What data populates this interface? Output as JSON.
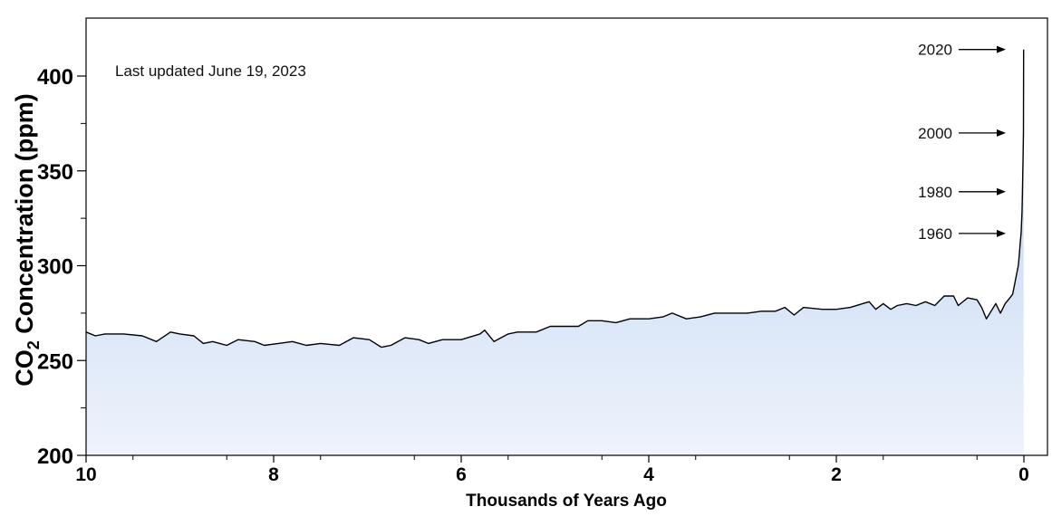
{
  "chart_data": {
    "type": "area",
    "title": "",
    "annotation": "Last updated June 19, 2023",
    "xlabel": "Thousands of Years Ago",
    "ylabel": "CO",
    "ylabel_subscript": "2",
    "ylabel_suffix": " Concentration (ppm)",
    "xlim": [
      10,
      0
    ],
    "ylim": [
      200,
      425
    ],
    "x_ticks": [
      10,
      8,
      6,
      4,
      2,
      0
    ],
    "y_ticks": [
      200,
      250,
      300,
      350,
      400
    ],
    "x_tick_labels": [
      "10",
      "8",
      "6",
      "4",
      "2",
      "0"
    ],
    "y_tick_labels": [
      "200",
      "250",
      "300",
      "350",
      "400"
    ],
    "grid": false,
    "colors": {
      "line": "#000000",
      "fill_top": "#b7cff0",
      "fill_bottom": "#eef3fc"
    },
    "year_markers": [
      {
        "label": "2020",
        "value": 414
      },
      {
        "label": "2000",
        "value": 370
      },
      {
        "label": "1980",
        "value": 339
      },
      {
        "label": "1960",
        "value": 317
      }
    ],
    "series": [
      {
        "x": [
          10,
          9.9,
          9.8,
          9.6,
          9.4,
          9.25,
          9.1,
          9.0,
          8.85,
          8.75,
          8.65,
          8.5,
          8.38,
          8.2,
          8.1,
          7.95,
          7.8,
          7.65,
          7.5,
          7.3,
          7.15,
          6.98,
          6.85,
          6.75,
          6.6,
          6.45,
          6.35,
          6.2,
          6.0,
          5.8,
          5.75,
          5.65,
          5.5,
          5.4,
          5.2,
          5.05,
          4.95,
          4.75,
          4.65,
          4.5,
          4.35,
          4.2,
          4.0,
          3.85,
          3.75,
          3.6,
          3.45,
          3.3,
          3.1,
          2.95,
          2.8,
          2.65,
          2.55,
          2.45,
          2.35,
          2.15,
          2.0,
          1.85,
          1.72,
          1.65,
          1.58,
          1.5,
          1.42,
          1.35,
          1.25,
          1.15,
          1.05,
          0.95,
          0.85,
          0.75,
          0.7,
          0.6,
          0.5,
          0.45,
          0.4,
          0.35,
          0.3,
          0.25,
          0.2,
          0.15,
          0.12,
          0.1,
          0.08,
          0.06,
          0.05,
          0.04,
          0.03,
          0.02,
          0.015,
          0.01,
          0.005,
          0.003
        ],
        "values": [
          265,
          263,
          264,
          264,
          263,
          260,
          265,
          264,
          263,
          259,
          260,
          258,
          261,
          260,
          258,
          259,
          260,
          258,
          259,
          258,
          262,
          261,
          257,
          258,
          262,
          261,
          259,
          261,
          261,
          264,
          266,
          260,
          264,
          265,
          265,
          268,
          268,
          268,
          271,
          271,
          270,
          272,
          272,
          273,
          275,
          272,
          273,
          275,
          275,
          275,
          276,
          276,
          278,
          274,
          278,
          277,
          277,
          278,
          280,
          281,
          277,
          280,
          277,
          279,
          280,
          279,
          281,
          279,
          284,
          284,
          279,
          283,
          282,
          278,
          272,
          276,
          280,
          275,
          280,
          283,
          285,
          290,
          295,
          300,
          305,
          312,
          317,
          328,
          339,
          355,
          370,
          414
        ]
      }
    ]
  }
}
